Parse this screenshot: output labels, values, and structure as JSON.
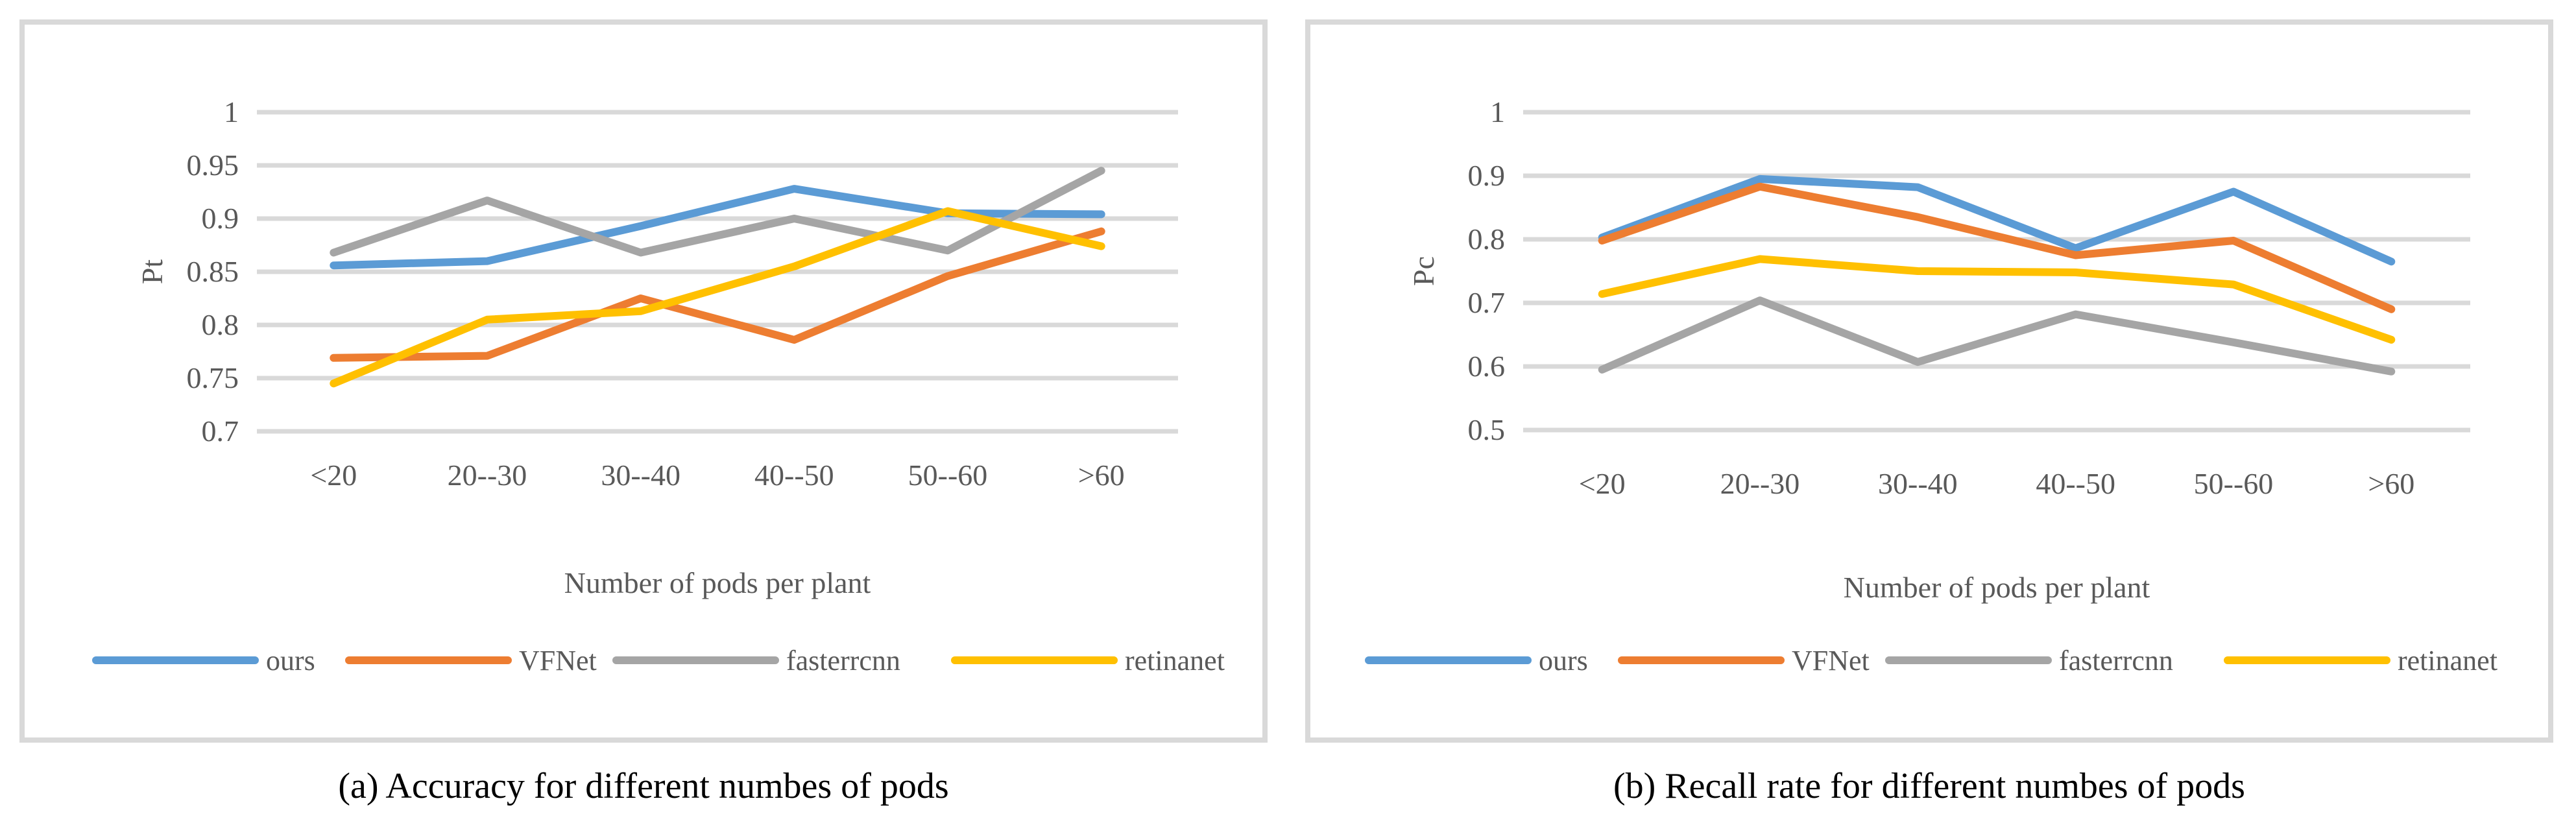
{
  "chart_data": [
    {
      "type": "line",
      "caption": "(a) Accuracy for different numbes of  pods",
      "categories": [
        "<20",
        "20--30",
        "30--40",
        "40--50",
        "50--60",
        ">60"
      ],
      "xlabel": "Number of pods per plant",
      "ylabel": "Pt",
      "ylim": [
        0.7,
        1.0
      ],
      "yticks": [
        0.7,
        0.75,
        0.8,
        0.85,
        0.9,
        0.95,
        1.0
      ],
      "ytick_labels": [
        "0.7",
        "0.75",
        "0.8",
        "0.85",
        "0.9",
        "0.95",
        "1"
      ],
      "grid": true,
      "legend_position": "bottom",
      "series": [
        {
          "name": "ours",
          "color": "#5b9bd5",
          "values": [
            0.856,
            0.86,
            0.893,
            0.928,
            0.905,
            0.904
          ]
        },
        {
          "name": "VFNet",
          "color": "#ed7d31",
          "values": [
            0.769,
            0.771,
            0.825,
            0.786,
            0.846,
            0.888
          ]
        },
        {
          "name": "fasterrcnn",
          "color": "#a5a5a5",
          "values": [
            0.868,
            0.917,
            0.868,
            0.9,
            0.87,
            0.945
          ]
        },
        {
          "name": "retinanet",
          "color": "#ffc000",
          "values": [
            0.745,
            0.805,
            0.813,
            0.855,
            0.907,
            0.874
          ]
        }
      ]
    },
    {
      "type": "line",
      "caption": "(b) Recall rate for different numbes of  pods",
      "categories": [
        "<20",
        "20--30",
        "30--40",
        "40--50",
        "50--60",
        ">60"
      ],
      "xlabel": "Number of pods per plant",
      "ylabel": "Pc",
      "ylim": [
        0.5,
        1.0
      ],
      "yticks": [
        0.5,
        0.6,
        0.7,
        0.8,
        0.9,
        1.0
      ],
      "ytick_labels": [
        "0.5",
        "0.6",
        "0.7",
        "0.8",
        "0.9",
        "1"
      ],
      "grid": true,
      "legend_position": "bottom",
      "series": [
        {
          "name": "ours",
          "color": "#5b9bd5",
          "values": [
            0.803,
            0.895,
            0.882,
            0.786,
            0.875,
            0.765
          ]
        },
        {
          "name": "VFNet",
          "color": "#ed7d31",
          "values": [
            0.798,
            0.883,
            0.835,
            0.775,
            0.798,
            0.69
          ]
        },
        {
          "name": "fasterrcnn",
          "color": "#a5a5a5",
          "values": [
            0.595,
            0.704,
            0.607,
            0.682,
            0.638,
            0.592
          ]
        },
        {
          "name": "retinanet",
          "color": "#ffc000",
          "values": [
            0.714,
            0.769,
            0.75,
            0.748,
            0.729,
            0.642
          ]
        }
      ]
    }
  ]
}
